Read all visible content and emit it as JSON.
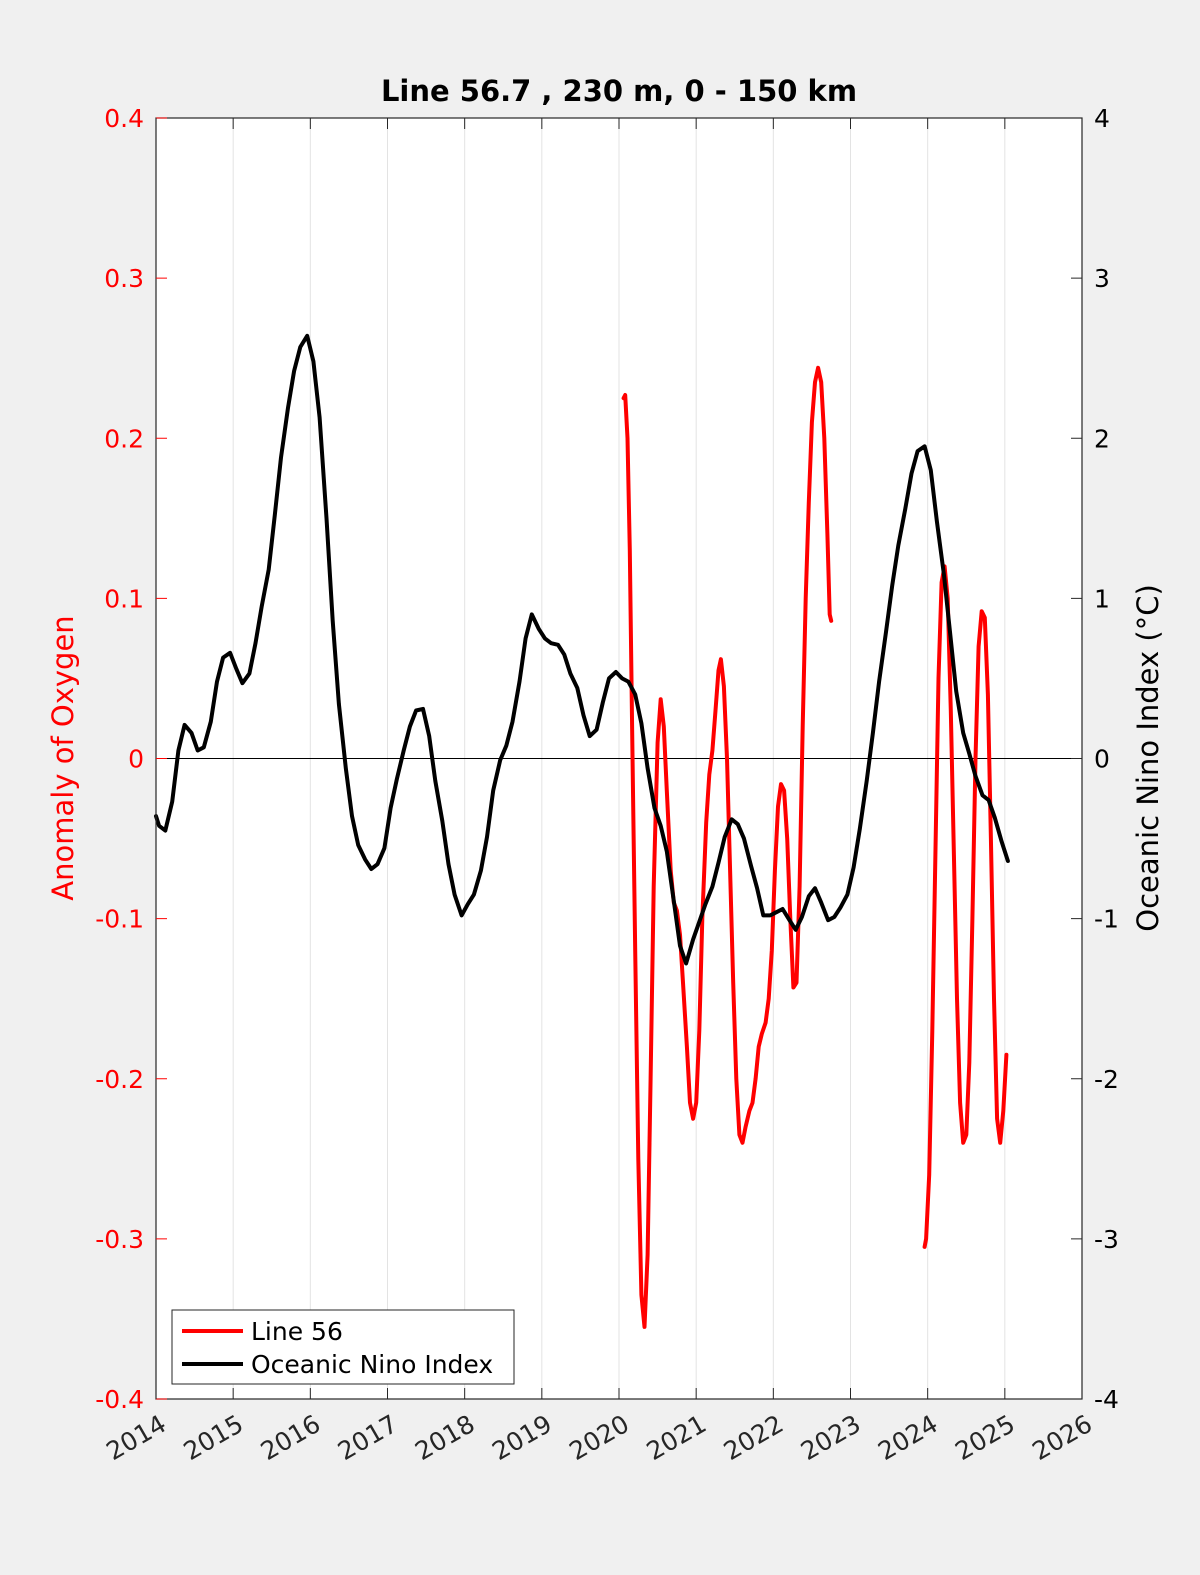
{
  "chart_data": {
    "type": "line",
    "title": "Line 56.7 , 230 m, 0 - 150 km",
    "xlabel": "",
    "xlim": [
      2014,
      2026
    ],
    "xticks": [
      "2014",
      "2015",
      "2016",
      "2017",
      "2018",
      "2019",
      "2020",
      "2021",
      "2022",
      "2023",
      "2024",
      "2025",
      "2026"
    ],
    "left_axis": {
      "label": "Anomaly of Oxygen",
      "color": "#ff0000",
      "ylim": [
        -0.4,
        0.4
      ],
      "ticks": [
        "-0.4",
        "-0.3",
        "-0.2",
        "-0.1",
        "0",
        "0.1",
        "0.2",
        "0.3",
        "0.4"
      ]
    },
    "right_axis": {
      "label": "Oceanic Nino Index (°C)",
      "color": "#000000",
      "ylim": [
        -4,
        4
      ],
      "ticks": [
        "-4",
        "-3",
        "-2",
        "-1",
        "0",
        "1",
        "2",
        "3",
        "4"
      ]
    },
    "grid": "vertical",
    "legend_position": "bottom-left",
    "series": [
      {
        "name": "Line 56",
        "axis": "left",
        "color": "#ff0000",
        "segments": [
          [
            [
              2020.06,
              0.225
            ],
            [
              2020.08,
              0.227
            ],
            [
              2020.11,
              0.2
            ],
            [
              2020.14,
              0.13
            ],
            [
              2020.17,
              0.02
            ],
            [
              2020.21,
              -0.12
            ],
            [
              2020.25,
              -0.25
            ],
            [
              2020.29,
              -0.335
            ],
            [
              2020.33,
              -0.355
            ],
            [
              2020.37,
              -0.31
            ],
            [
              2020.41,
              -0.2
            ],
            [
              2020.45,
              -0.08
            ],
            [
              2020.5,
              0.01
            ],
            [
              2020.54,
              0.037
            ],
            [
              2020.58,
              0.02
            ],
            [
              2020.62,
              -0.02
            ],
            [
              2020.67,
              -0.07
            ],
            [
              2020.71,
              -0.09
            ],
            [
              2020.75,
              -0.095
            ],
            [
              2020.79,
              -0.11
            ],
            [
              2020.83,
              -0.14
            ],
            [
              2020.88,
              -0.18
            ],
            [
              2020.92,
              -0.215
            ],
            [
              2020.96,
              -0.225
            ],
            [
              2021.0,
              -0.215
            ],
            [
              2021.04,
              -0.17
            ],
            [
              2021.08,
              -0.1
            ],
            [
              2021.13,
              -0.04
            ],
            [
              2021.17,
              -0.01
            ],
            [
              2021.21,
              0.005
            ],
            [
              2021.25,
              0.03
            ],
            [
              2021.29,
              0.055
            ],
            [
              2021.32,
              0.062
            ],
            [
              2021.36,
              0.045
            ],
            [
              2021.4,
              0.0
            ],
            [
              2021.44,
              -0.07
            ],
            [
              2021.48,
              -0.14
            ],
            [
              2021.52,
              -0.2
            ],
            [
              2021.56,
              -0.235
            ],
            [
              2021.6,
              -0.24
            ],
            [
              2021.64,
              -0.23
            ],
            [
              2021.69,
              -0.22
            ],
            [
              2021.73,
              -0.215
            ],
            [
              2021.77,
              -0.2
            ],
            [
              2021.81,
              -0.18
            ],
            [
              2021.85,
              -0.172
            ],
            [
              2021.9,
              -0.165
            ],
            [
              2021.94,
              -0.15
            ],
            [
              2021.98,
              -0.12
            ],
            [
              2022.02,
              -0.07
            ],
            [
              2022.06,
              -0.03
            ],
            [
              2022.1,
              -0.016
            ],
            [
              2022.14,
              -0.02
            ],
            [
              2022.18,
              -0.05
            ],
            [
              2022.22,
              -0.1
            ],
            [
              2022.26,
              -0.143
            ],
            [
              2022.3,
              -0.14
            ],
            [
              2022.34,
              -0.08
            ],
            [
              2022.38,
              0.02
            ],
            [
              2022.42,
              0.1
            ],
            [
              2022.46,
              0.16
            ],
            [
              2022.5,
              0.21
            ],
            [
              2022.54,
              0.235
            ],
            [
              2022.58,
              0.244
            ],
            [
              2022.62,
              0.235
            ],
            [
              2022.66,
              0.2
            ],
            [
              2022.7,
              0.14
            ],
            [
              2022.73,
              0.09
            ],
            [
              2022.75,
              0.086
            ]
          ],
          [
            [
              2023.96,
              -0.305
            ],
            [
              2023.98,
              -0.3
            ],
            [
              2024.02,
              -0.26
            ],
            [
              2024.06,
              -0.17
            ],
            [
              2024.1,
              -0.06
            ],
            [
              2024.14,
              0.05
            ],
            [
              2024.18,
              0.11
            ],
            [
              2024.22,
              0.12
            ],
            [
              2024.26,
              0.1
            ],
            [
              2024.3,
              0.03
            ],
            [
              2024.34,
              -0.06
            ],
            [
              2024.38,
              -0.15
            ],
            [
              2024.42,
              -0.215
            ],
            [
              2024.46,
              -0.24
            ],
            [
              2024.5,
              -0.235
            ],
            [
              2024.54,
              -0.19
            ],
            [
              2024.58,
              -0.1
            ],
            [
              2024.62,
              0.0
            ],
            [
              2024.66,
              0.07
            ],
            [
              2024.7,
              0.092
            ],
            [
              2024.74,
              0.088
            ],
            [
              2024.78,
              0.04
            ],
            [
              2024.82,
              -0.05
            ],
            [
              2024.86,
              -0.15
            ],
            [
              2024.9,
              -0.225
            ],
            [
              2024.94,
              -0.24
            ],
            [
              2024.98,
              -0.22
            ],
            [
              2025.02,
              -0.185
            ]
          ]
        ]
      },
      {
        "name": "Oceanic Nino Index",
        "axis": "right",
        "color": "#000000",
        "points": [
          [
            2014.0,
            -0.36
          ],
          [
            2014.04,
            -0.42
          ],
          [
            2014.12,
            -0.45
          ],
          [
            2014.21,
            -0.27
          ],
          [
            2014.29,
            0.05
          ],
          [
            2014.37,
            0.21
          ],
          [
            2014.46,
            0.16
          ],
          [
            2014.54,
            0.05
          ],
          [
            2014.62,
            0.07
          ],
          [
            2014.71,
            0.23
          ],
          [
            2014.79,
            0.48
          ],
          [
            2014.87,
            0.63
          ],
          [
            2014.96,
            0.66
          ],
          [
            2015.04,
            0.56
          ],
          [
            2015.12,
            0.47
          ],
          [
            2015.21,
            0.53
          ],
          [
            2015.29,
            0.72
          ],
          [
            2015.37,
            0.95
          ],
          [
            2015.46,
            1.18
          ],
          [
            2015.54,
            1.52
          ],
          [
            2015.62,
            1.88
          ],
          [
            2015.71,
            2.19
          ],
          [
            2015.79,
            2.42
          ],
          [
            2015.87,
            2.57
          ],
          [
            2015.96,
            2.64
          ],
          [
            2016.04,
            2.48
          ],
          [
            2016.12,
            2.13
          ],
          [
            2016.21,
            1.5
          ],
          [
            2016.29,
            0.86
          ],
          [
            2016.37,
            0.34
          ],
          [
            2016.46,
            -0.06
          ],
          [
            2016.54,
            -0.36
          ],
          [
            2016.62,
            -0.54
          ],
          [
            2016.71,
            -0.63
          ],
          [
            2016.79,
            -0.69
          ],
          [
            2016.87,
            -0.66
          ],
          [
            2016.96,
            -0.56
          ],
          [
            2017.04,
            -0.31
          ],
          [
            2017.12,
            -0.13
          ],
          [
            2017.21,
            0.05
          ],
          [
            2017.29,
            0.2
          ],
          [
            2017.37,
            0.3
          ],
          [
            2017.46,
            0.31
          ],
          [
            2017.54,
            0.14
          ],
          [
            2017.62,
            -0.14
          ],
          [
            2017.71,
            -0.39
          ],
          [
            2017.79,
            -0.66
          ],
          [
            2017.87,
            -0.85
          ],
          [
            2017.96,
            -0.98
          ],
          [
            2018.04,
            -0.91
          ],
          [
            2018.12,
            -0.85
          ],
          [
            2018.21,
            -0.7
          ],
          [
            2018.29,
            -0.49
          ],
          [
            2018.37,
            -0.2
          ],
          [
            2018.46,
            -0.01
          ],
          [
            2018.54,
            0.08
          ],
          [
            2018.62,
            0.23
          ],
          [
            2018.71,
            0.48
          ],
          [
            2018.79,
            0.75
          ],
          [
            2018.87,
            0.9
          ],
          [
            2018.96,
            0.81
          ],
          [
            2019.04,
            0.75
          ],
          [
            2019.12,
            0.72
          ],
          [
            2019.21,
            0.71
          ],
          [
            2019.29,
            0.65
          ],
          [
            2019.37,
            0.53
          ],
          [
            2019.46,
            0.44
          ],
          [
            2019.54,
            0.27
          ],
          [
            2019.62,
            0.14
          ],
          [
            2019.71,
            0.18
          ],
          [
            2019.79,
            0.35
          ],
          [
            2019.87,
            0.5
          ],
          [
            2019.96,
            0.54
          ],
          [
            2020.04,
            0.5
          ],
          [
            2020.12,
            0.48
          ],
          [
            2020.21,
            0.4
          ],
          [
            2020.29,
            0.22
          ],
          [
            2020.37,
            -0.06
          ],
          [
            2020.46,
            -0.31
          ],
          [
            2020.54,
            -0.42
          ],
          [
            2020.62,
            -0.58
          ],
          [
            2020.71,
            -0.89
          ],
          [
            2020.79,
            -1.17
          ],
          [
            2020.87,
            -1.28
          ],
          [
            2020.96,
            -1.13
          ],
          [
            2021.04,
            -1.02
          ],
          [
            2021.12,
            -0.91
          ],
          [
            2021.21,
            -0.8
          ],
          [
            2021.29,
            -0.65
          ],
          [
            2021.37,
            -0.49
          ],
          [
            2021.46,
            -0.38
          ],
          [
            2021.54,
            -0.41
          ],
          [
            2021.62,
            -0.5
          ],
          [
            2021.71,
            -0.67
          ],
          [
            2021.79,
            -0.81
          ],
          [
            2021.87,
            -0.98
          ],
          [
            2021.96,
            -0.98
          ],
          [
            2022.04,
            -0.96
          ],
          [
            2022.12,
            -0.94
          ],
          [
            2022.21,
            -1.01
          ],
          [
            2022.29,
            -1.07
          ],
          [
            2022.37,
            -0.99
          ],
          [
            2022.46,
            -0.86
          ],
          [
            2022.54,
            -0.81
          ],
          [
            2022.62,
            -0.9
          ],
          [
            2022.71,
            -1.01
          ],
          [
            2022.79,
            -0.99
          ],
          [
            2022.87,
            -0.93
          ],
          [
            2022.96,
            -0.85
          ],
          [
            2023.04,
            -0.68
          ],
          [
            2023.12,
            -0.44
          ],
          [
            2023.21,
            -0.14
          ],
          [
            2023.29,
            0.16
          ],
          [
            2023.37,
            0.48
          ],
          [
            2023.46,
            0.79
          ],
          [
            2023.54,
            1.08
          ],
          [
            2023.62,
            1.33
          ],
          [
            2023.71,
            1.56
          ],
          [
            2023.79,
            1.78
          ],
          [
            2023.87,
            1.92
          ],
          [
            2023.96,
            1.95
          ],
          [
            2024.04,
            1.8
          ],
          [
            2024.12,
            1.48
          ],
          [
            2024.21,
            1.15
          ],
          [
            2024.29,
            0.79
          ],
          [
            2024.37,
            0.42
          ],
          [
            2024.46,
            0.16
          ],
          [
            2024.54,
            0.03
          ],
          [
            2024.62,
            -0.11
          ],
          [
            2024.71,
            -0.23
          ],
          [
            2024.79,
            -0.26
          ],
          [
            2024.87,
            -0.37
          ],
          [
            2024.96,
            -0.52
          ],
          [
            2025.04,
            -0.64
          ]
        ]
      }
    ]
  }
}
